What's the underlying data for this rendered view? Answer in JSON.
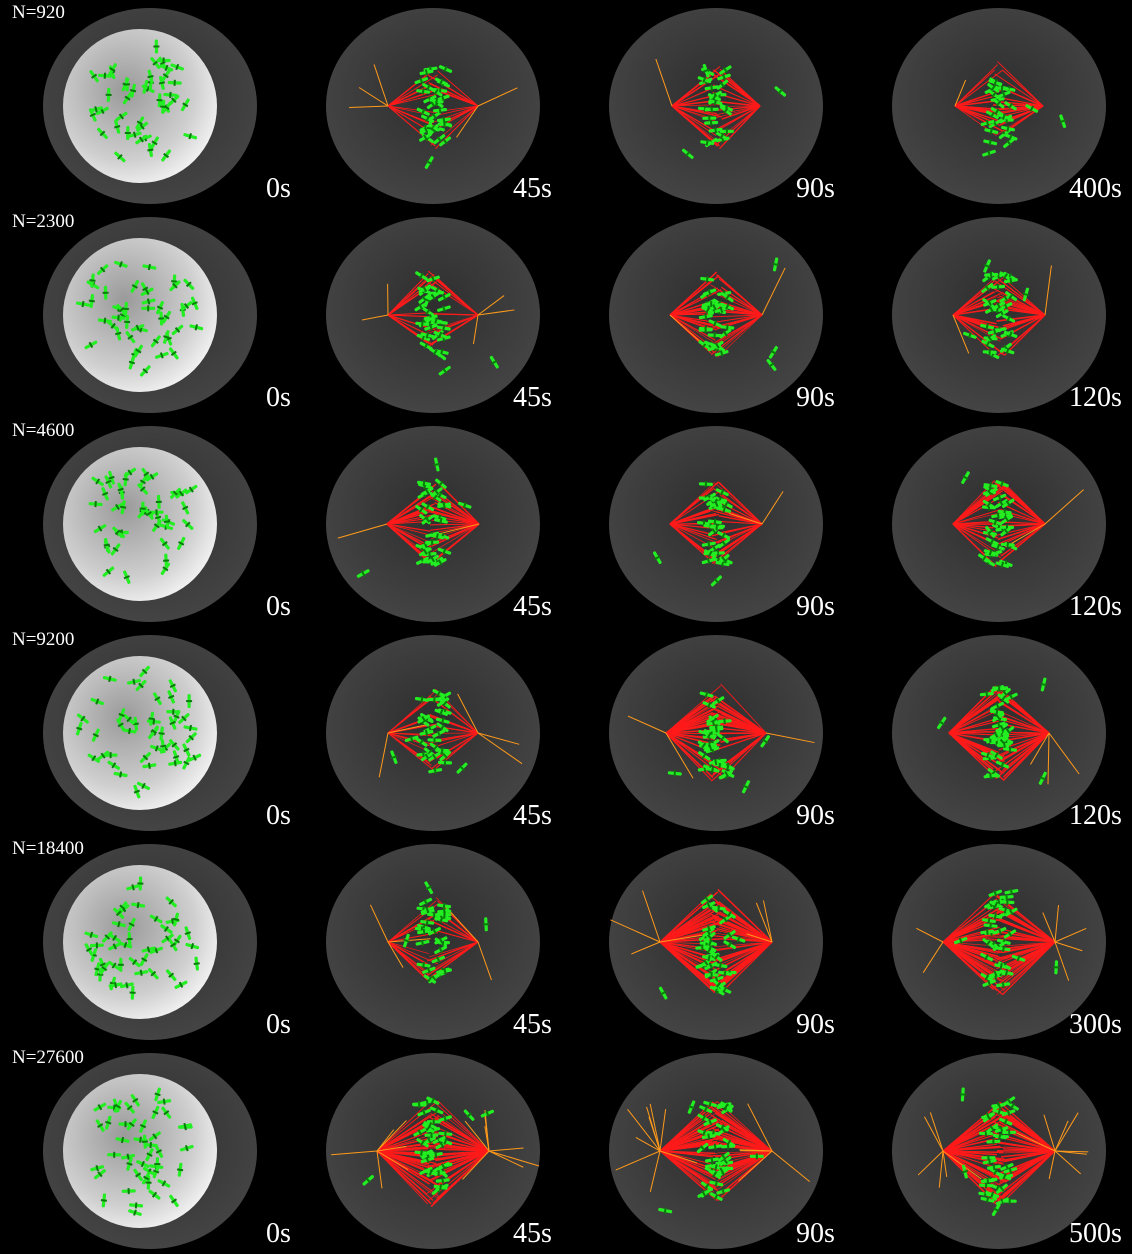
{
  "rows": [
    {
      "n_label": "N=920",
      "panels": [
        {
          "time": "0s",
          "stage": "initial",
          "spindle": "none"
        },
        {
          "time": "45s",
          "stage": "spindle",
          "spindle": "forming"
        },
        {
          "time": "90s",
          "stage": "spindle",
          "spindle": "compact"
        },
        {
          "time": "400s",
          "stage": "spindle",
          "spindle": "compact"
        }
      ]
    },
    {
      "n_label": "N=2300",
      "panels": [
        {
          "time": "0s",
          "stage": "initial",
          "spindle": "none"
        },
        {
          "time": "45s",
          "stage": "spindle",
          "spindle": "forming"
        },
        {
          "time": "90s",
          "stage": "spindle",
          "spindle": "medium"
        },
        {
          "time": "120s",
          "stage": "spindle",
          "spindle": "medium"
        }
      ]
    },
    {
      "n_label": "N=4600",
      "panels": [
        {
          "time": "0s",
          "stage": "initial",
          "spindle": "none"
        },
        {
          "time": "45s",
          "stage": "spindle",
          "spindle": "medium"
        },
        {
          "time": "90s",
          "stage": "spindle",
          "spindle": "medium"
        },
        {
          "time": "120s",
          "stage": "spindle",
          "spindle": "medium"
        }
      ]
    },
    {
      "n_label": "N=9200",
      "panels": [
        {
          "time": "0s",
          "stage": "initial",
          "spindle": "none"
        },
        {
          "time": "45s",
          "stage": "spindle",
          "spindle": "forming"
        },
        {
          "time": "90s",
          "stage": "spindle",
          "spindle": "dense"
        },
        {
          "time": "120s",
          "stage": "spindle",
          "spindle": "dense"
        }
      ]
    },
    {
      "n_label": "N=18400",
      "panels": [
        {
          "time": "0s",
          "stage": "initial",
          "spindle": "none"
        },
        {
          "time": "45s",
          "stage": "spindle",
          "spindle": "forming"
        },
        {
          "time": "90s",
          "stage": "spindle",
          "spindle": "full"
        },
        {
          "time": "300s",
          "stage": "spindle",
          "spindle": "full"
        }
      ]
    },
    {
      "n_label": "N=27600",
      "panels": [
        {
          "time": "0s",
          "stage": "initial",
          "spindle": "none"
        },
        {
          "time": "45s",
          "stage": "spindle",
          "spindle": "full-asters"
        },
        {
          "time": "90s",
          "stage": "spindle",
          "spindle": "full-asters"
        },
        {
          "time": "500s",
          "stage": "spindle",
          "spindle": "full-asters"
        }
      ]
    }
  ],
  "colors": {
    "background": "#000000",
    "cell": "#3a3a3a",
    "nucleus": "#d8d8d8",
    "chromosome": "#22ee22",
    "kinetochore_mt": "#ff1a1a",
    "astral_mt": "#ff9a1a",
    "label": "#ffffff"
  }
}
